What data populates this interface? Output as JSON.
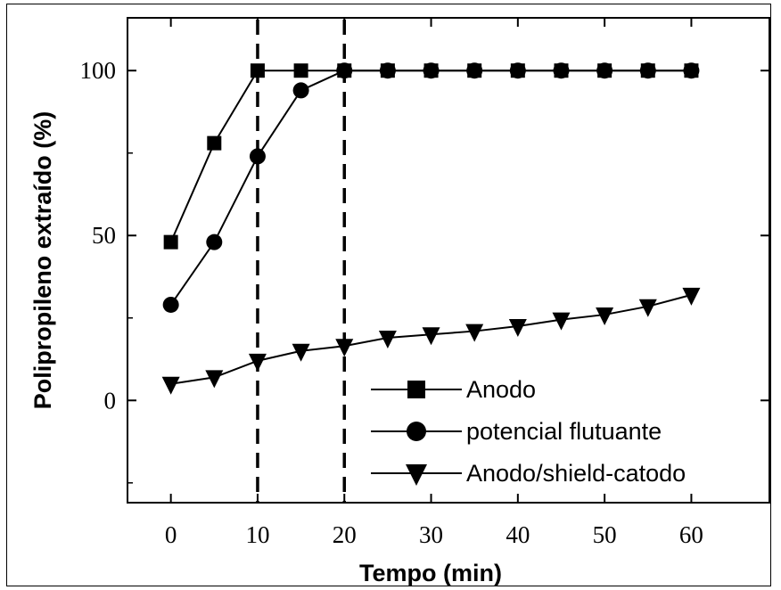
{
  "chart_data": {
    "type": "line",
    "title": "",
    "xlabel": "Tempo (min)",
    "ylabel": "Polipropileno extraído (%)",
    "xlim": [
      -5,
      69
    ],
    "ylim": [
      -31,
      116
    ],
    "xticks": [
      0,
      10,
      20,
      30,
      40,
      50,
      60
    ],
    "yticks": [
      0,
      50,
      100
    ],
    "x_tick_labels": [
      "0",
      "10",
      "20",
      "30",
      "40",
      "50",
      "60"
    ],
    "y_tick_labels": [
      "0",
      "50",
      "100"
    ],
    "grid": false,
    "legend_position": "bottom-right",
    "vertical_reference_lines": [
      10,
      20
    ],
    "series": [
      {
        "name": "Anodo",
        "marker": "square",
        "x": [
          0,
          5,
          10,
          15,
          20,
          25,
          30,
          35,
          40,
          45,
          50,
          55,
          60
        ],
        "y": [
          48,
          78,
          100,
          100,
          100,
          100,
          100,
          100,
          100,
          100,
          100,
          100,
          100
        ]
      },
      {
        "name": "potencial flutuante",
        "marker": "circle",
        "x": [
          0,
          5,
          10,
          15,
          20,
          25,
          30,
          35,
          40,
          45,
          50,
          55,
          60
        ],
        "y": [
          29,
          48,
          74,
          94,
          100,
          100,
          100,
          100,
          100,
          100,
          100,
          100,
          100
        ]
      },
      {
        "name": "Anodo/shield-catodo",
        "marker": "triangle-down",
        "x": [
          0,
          5,
          10,
          15,
          20,
          25,
          30,
          35,
          40,
          45,
          50,
          55,
          60
        ],
        "y": [
          5,
          7,
          12,
          15,
          16.5,
          19,
          20,
          21,
          22.5,
          24.5,
          26,
          28.5,
          32
        ]
      }
    ],
    "colors": {
      "line": "#000000",
      "marker": "#000000"
    }
  }
}
